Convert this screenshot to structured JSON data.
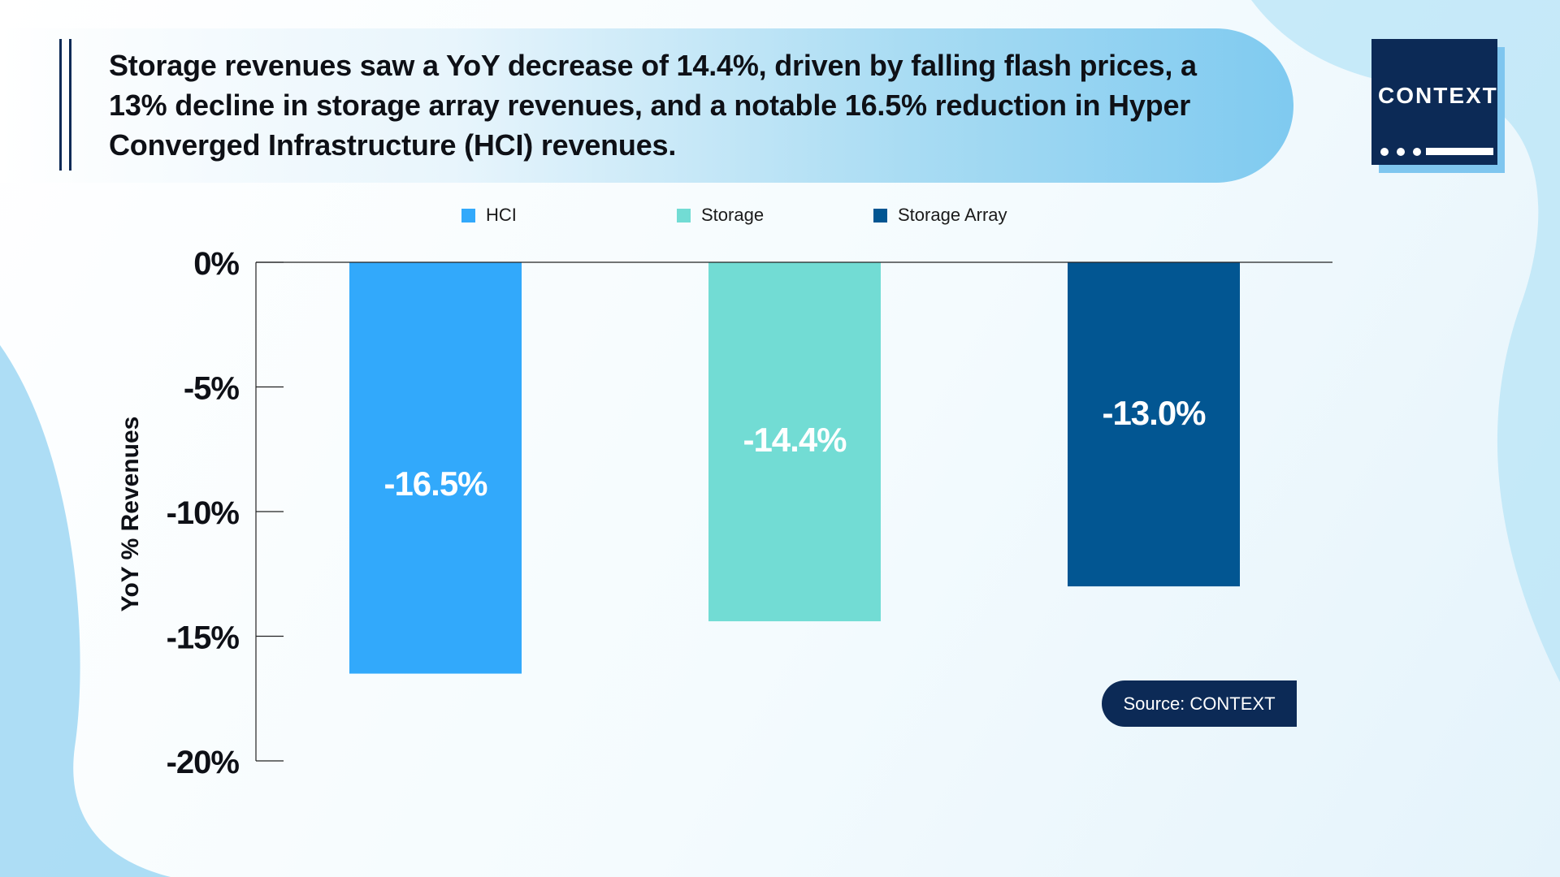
{
  "title": "Storage revenues saw a YoY decrease of 14.4%, driven by falling flash prices, a 13% decline in storage array revenues, and a notable 16.5% reduction in Hyper Converged Infrastructure (HCI) revenues.",
  "logo": {
    "text": "CONTEXT"
  },
  "source": "Source: CONTEXT",
  "colors": {
    "hci": "#32a9fb",
    "storage": "#72dcd4",
    "storage_array": "#025692",
    "navy": "#0c2a56"
  },
  "chart_data": {
    "type": "bar",
    "categories": [
      "HCI",
      "Storage",
      "Storage Array"
    ],
    "values": [
      -16.5,
      -14.4,
      -13.0
    ],
    "data_labels": [
      "-16.5%",
      "-14.4%",
      "-13.0%"
    ],
    "ylabel": "YoY % Revenues",
    "xlabel": "",
    "ylim": [
      -20,
      0
    ],
    "yticks": [
      0,
      -5,
      -10,
      -15,
      -20
    ],
    "ytick_labels": [
      "0%",
      "-5%",
      "-10%",
      "-15%",
      "-20%"
    ],
    "legend": [
      "HCI",
      "Storage",
      "Storage Array"
    ],
    "legend_position": "top",
    "grid": false
  }
}
